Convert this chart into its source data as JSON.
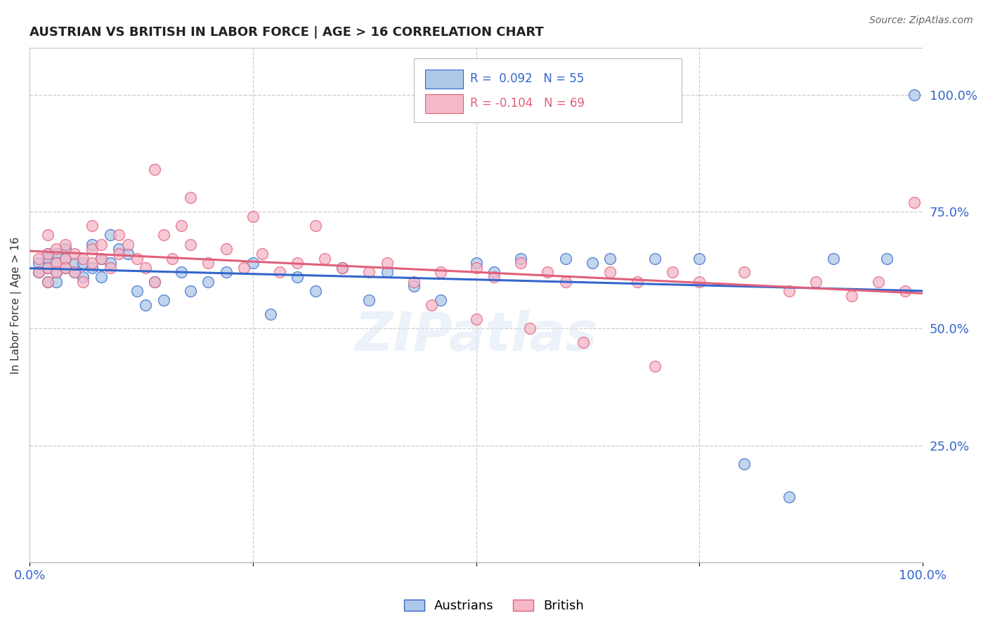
{
  "title": "AUSTRIAN VS BRITISH IN LABOR FORCE | AGE > 16 CORRELATION CHART",
  "source": "Source: ZipAtlas.com",
  "ylabel": "In Labor Force | Age > 16",
  "xlim": [
    0,
    1.0
  ],
  "ylim": [
    0.0,
    1.1
  ],
  "xtick_positions": [
    0,
    0.25,
    0.5,
    0.75,
    1.0
  ],
  "xticklabels": [
    "0.0%",
    "",
    "",
    "",
    "100.0%"
  ],
  "ytick_positions_right": [
    0.25,
    0.5,
    0.75,
    1.0
  ],
  "ytick_labels_right": [
    "25.0%",
    "50.0%",
    "75.0%",
    "100.0%"
  ],
  "legend_text_aus": "R =  0.092   N = 55",
  "legend_text_brit": "R = -0.104   N = 69",
  "color_austrians": "#adc8e8",
  "color_british": "#f5b8c8",
  "color_line_austrians": "#3366cc",
  "color_line_british": "#e0607a",
  "watermark": "ZIPatlas",
  "background_color": "#ffffff",
  "grid_color": "#cccccc",
  "bottom_label_aus": "Austrians",
  "bottom_label_brit": "British",
  "aus_x": [
    0.01,
    0.01,
    0.02,
    0.02,
    0.02,
    0.02,
    0.03,
    0.03,
    0.03,
    0.03,
    0.04,
    0.04,
    0.04,
    0.05,
    0.05,
    0.06,
    0.06,
    0.07,
    0.07,
    0.08,
    0.08,
    0.09,
    0.09,
    0.1,
    0.11,
    0.12,
    0.13,
    0.14,
    0.15,
    0.17,
    0.18,
    0.2,
    0.22,
    0.25,
    0.27,
    0.3,
    0.32,
    0.35,
    0.38,
    0.4,
    0.43,
    0.46,
    0.5,
    0.52,
    0.55,
    0.6,
    0.63,
    0.65,
    0.7,
    0.75,
    0.8,
    0.85,
    0.9,
    0.96,
    0.99
  ],
  "aus_y": [
    0.64,
    0.62,
    0.66,
    0.6,
    0.65,
    0.63,
    0.66,
    0.62,
    0.6,
    0.64,
    0.63,
    0.65,
    0.67,
    0.62,
    0.64,
    0.61,
    0.64,
    0.68,
    0.63,
    0.65,
    0.61,
    0.7,
    0.64,
    0.67,
    0.66,
    0.58,
    0.55,
    0.6,
    0.56,
    0.62,
    0.58,
    0.6,
    0.62,
    0.64,
    0.53,
    0.61,
    0.58,
    0.63,
    0.56,
    0.62,
    0.59,
    0.56,
    0.64,
    0.62,
    0.65,
    0.65,
    0.64,
    0.65,
    0.65,
    0.65,
    0.21,
    0.14,
    0.65,
    0.65,
    1.0
  ],
  "brit_x": [
    0.01,
    0.01,
    0.02,
    0.02,
    0.02,
    0.02,
    0.03,
    0.03,
    0.03,
    0.04,
    0.04,
    0.04,
    0.05,
    0.05,
    0.06,
    0.06,
    0.07,
    0.07,
    0.07,
    0.08,
    0.08,
    0.09,
    0.1,
    0.1,
    0.11,
    0.12,
    0.13,
    0.14,
    0.15,
    0.16,
    0.17,
    0.18,
    0.2,
    0.22,
    0.24,
    0.26,
    0.28,
    0.3,
    0.33,
    0.35,
    0.38,
    0.4,
    0.43,
    0.46,
    0.5,
    0.52,
    0.55,
    0.58,
    0.6,
    0.65,
    0.68,
    0.72,
    0.75,
    0.8,
    0.85,
    0.88,
    0.92,
    0.95,
    0.98,
    0.99,
    0.14,
    0.18,
    0.25,
    0.32,
    0.45,
    0.5,
    0.56,
    0.62,
    0.7
  ],
  "brit_y": [
    0.65,
    0.62,
    0.7,
    0.63,
    0.66,
    0.6,
    0.67,
    0.64,
    0.62,
    0.68,
    0.65,
    0.63,
    0.66,
    0.62,
    0.65,
    0.6,
    0.72,
    0.67,
    0.64,
    0.68,
    0.65,
    0.63,
    0.7,
    0.66,
    0.68,
    0.65,
    0.63,
    0.6,
    0.7,
    0.65,
    0.72,
    0.68,
    0.64,
    0.67,
    0.63,
    0.66,
    0.62,
    0.64,
    0.65,
    0.63,
    0.62,
    0.64,
    0.6,
    0.62,
    0.63,
    0.61,
    0.64,
    0.62,
    0.6,
    0.62,
    0.6,
    0.62,
    0.6,
    0.62,
    0.58,
    0.6,
    0.57,
    0.6,
    0.58,
    0.77,
    0.84,
    0.78,
    0.74,
    0.72,
    0.55,
    0.52,
    0.5,
    0.47,
    0.42
  ]
}
